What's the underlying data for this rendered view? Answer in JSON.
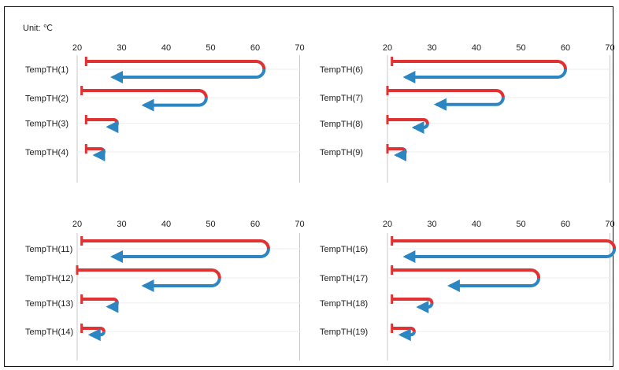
{
  "unit_label": "Unit: ℃",
  "colors": {
    "heating": "#e03232",
    "cooling": "#2b86c2",
    "grid": "#c8c8c8",
    "rowline": "#eeeeee"
  },
  "chart_data": [
    {
      "type": "bar",
      "subtype": "heating-cooling range (start → max → end)",
      "xticks": [
        20,
        30,
        40,
        50,
        60,
        70
      ],
      "xlim": [
        20,
        70
      ],
      "rows": [
        {
          "label": "TempTH(1)",
          "start": 22,
          "max": 62,
          "end": 28
        },
        {
          "label": "TempTH(2)",
          "start": 21,
          "max": 49,
          "end": 35
        },
        {
          "label": "TempTH(3)",
          "start": 22,
          "max": 29,
          "end": 27
        },
        {
          "label": "TempTH(4)",
          "start": 22,
          "max": 26,
          "end": 24
        }
      ]
    },
    {
      "type": "bar",
      "subtype": "heating-cooling range (start → max → end)",
      "xticks": [
        20,
        30,
        40,
        50,
        60,
        70
      ],
      "xlim": [
        20,
        70
      ],
      "rows": [
        {
          "label": "TempTH(6)",
          "start": 21,
          "max": 60,
          "end": 24
        },
        {
          "label": "TempTH(7)",
          "start": 20,
          "max": 46,
          "end": 31
        },
        {
          "label": "TempTH(8)",
          "start": 20,
          "max": 29,
          "end": 26
        },
        {
          "label": "TempTH(9)",
          "start": 20,
          "max": 24,
          "end": 22
        }
      ]
    },
    {
      "type": "bar",
      "subtype": "heating-cooling range (start → max → end)",
      "xticks": [
        20,
        30,
        40,
        50,
        60,
        70
      ],
      "xlim": [
        20,
        70
      ],
      "rows": [
        {
          "label": "TempTH(11)",
          "start": 21,
          "max": 63,
          "end": 28
        },
        {
          "label": "TempTH(12)",
          "start": 20,
          "max": 52,
          "end": 35
        },
        {
          "label": "TempTH(13)",
          "start": 21,
          "max": 29,
          "end": 27
        },
        {
          "label": "TempTH(14)",
          "start": 21,
          "max": 26,
          "end": 23
        }
      ]
    },
    {
      "type": "bar",
      "subtype": "heating-cooling range (start → max → end)",
      "xticks": [
        20,
        30,
        40,
        50,
        60,
        70
      ],
      "xlim": [
        20,
        70
      ],
      "rows": [
        {
          "label": "TempTH(16)",
          "start": 21,
          "max": 71,
          "end": 24
        },
        {
          "label": "TempTH(17)",
          "start": 21,
          "max": 54,
          "end": 34
        },
        {
          "label": "TempTH(18)",
          "start": 21,
          "max": 30,
          "end": 27
        },
        {
          "label": "TempTH(19)",
          "start": 21,
          "max": 26,
          "end": 23
        }
      ]
    }
  ]
}
